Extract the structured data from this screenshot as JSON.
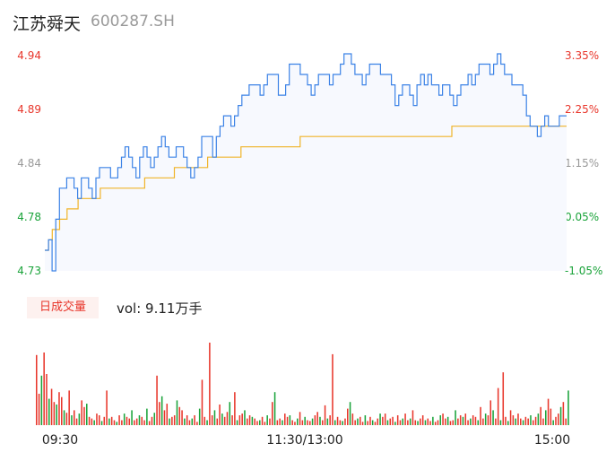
{
  "header": {
    "name": "江苏舜天",
    "code": "600287.SH"
  },
  "volume_panel": {
    "badge_label": "日成交量",
    "vol_text": "vol: 9.11万手"
  },
  "colors": {
    "price": "#3b82e6",
    "avg": "#f0b429",
    "up": "#e8362b",
    "down": "#1aa33a",
    "flat": "#999999",
    "fill": "#f7f9fe"
  },
  "chart_data": [
    {
      "type": "line",
      "title": "",
      "x_ticks": [
        "09:30",
        "11:30/13:00",
        "15:00"
      ],
      "y_left_ticks": [
        "4.94",
        "4.89",
        "4.84",
        "4.78",
        "4.73"
      ],
      "y_right_ticks": [
        "3.35%",
        "2.25%",
        "1.15%",
        "0.05%",
        "-1.05%"
      ],
      "ylim": [
        4.73,
        4.94
      ],
      "series": [
        {
          "values": [
            4.75,
            4.76,
            4.73,
            4.78,
            4.81,
            4.81,
            4.82,
            4.82,
            4.81,
            4.8,
            4.82,
            4.82,
            4.81,
            4.8,
            4.82,
            4.83,
            4.83,
            4.83,
            4.82,
            4.82,
            4.83,
            4.84,
            4.85,
            4.84,
            4.83,
            4.82,
            4.84,
            4.85,
            4.84,
            4.83,
            4.84,
            4.85,
            4.86,
            4.85,
            4.84,
            4.84,
            4.85,
            4.85,
            4.84,
            4.83,
            4.82,
            4.83,
            4.84,
            4.86,
            4.86,
            4.86,
            4.84,
            4.86,
            4.87,
            4.88,
            4.88,
            4.87,
            4.88,
            4.89,
            4.9,
            4.9,
            4.91,
            4.91,
            4.91,
            4.9,
            4.91,
            4.92,
            4.92,
            4.92,
            4.9,
            4.9,
            4.91,
            4.93,
            4.93,
            4.93,
            4.92,
            4.92,
            4.91,
            4.9,
            4.91,
            4.92,
            4.92,
            4.92,
            4.91,
            4.92,
            4.92,
            4.93,
            4.94,
            4.94,
            4.93,
            4.92,
            4.92,
            4.91,
            4.92,
            4.93,
            4.93,
            4.93,
            4.92,
            4.92,
            4.92,
            4.91,
            4.89,
            4.9,
            4.91,
            4.91,
            4.9,
            4.89,
            4.91,
            4.92,
            4.91,
            4.92,
            4.91,
            4.91,
            4.9,
            4.91,
            4.91,
            4.9,
            4.89,
            4.9,
            4.91,
            4.91,
            4.92,
            4.91,
            4.92,
            4.93,
            4.93,
            4.93,
            4.92,
            4.93,
            4.94,
            4.93,
            4.92,
            4.92,
            4.91,
            4.91,
            4.91,
            4.9,
            4.88,
            4.87,
            4.87,
            4.86,
            4.87,
            4.88,
            4.87,
            4.87,
            4.87,
            4.88,
            4.88,
            4.88
          ],
          "color": "#3b82e6"
        },
        {
          "values": [
            4.75,
            4.76,
            4.77,
            4.77,
            4.78,
            4.78,
            4.79,
            4.79,
            4.79,
            4.8,
            4.8,
            4.8,
            4.8,
            4.8,
            4.8,
            4.81,
            4.81,
            4.81,
            4.81,
            4.81,
            4.81,
            4.81,
            4.81,
            4.81,
            4.81,
            4.81,
            4.81,
            4.82,
            4.82,
            4.82,
            4.82,
            4.82,
            4.82,
            4.82,
            4.82,
            4.83,
            4.83,
            4.83,
            4.83,
            4.83,
            4.83,
            4.83,
            4.83,
            4.83,
            4.84,
            4.84,
            4.84,
            4.84,
            4.84,
            4.84,
            4.84,
            4.84,
            4.84,
            4.85,
            4.85,
            4.85,
            4.85,
            4.85,
            4.85,
            4.85,
            4.85,
            4.85,
            4.85,
            4.85,
            4.85,
            4.85,
            4.85,
            4.85,
            4.85,
            4.86,
            4.86,
            4.86,
            4.86,
            4.86,
            4.86,
            4.86,
            4.86,
            4.86,
            4.86,
            4.86,
            4.86,
            4.86,
            4.86,
            4.86,
            4.86,
            4.86,
            4.86,
            4.86,
            4.86,
            4.86,
            4.86,
            4.86,
            4.86,
            4.86,
            4.86,
            4.86,
            4.86,
            4.86,
            4.86,
            4.86,
            4.86,
            4.86,
            4.86,
            4.86,
            4.86,
            4.86,
            4.86,
            4.86,
            4.86,
            4.86,
            4.87,
            4.87,
            4.87,
            4.87,
            4.87,
            4.87,
            4.87,
            4.87,
            4.87,
            4.87,
            4.87,
            4.87,
            4.87,
            4.87,
            4.87,
            4.87,
            4.87,
            4.87,
            4.87,
            4.87,
            4.87,
            4.87,
            4.87,
            4.87,
            4.87,
            4.87,
            4.87,
            4.87,
            4.87,
            4.87,
            4.87,
            4.87
          ],
          "color": "#f0b429"
        }
      ]
    },
    {
      "type": "bar",
      "title": "",
      "ylim": [
        0,
        100
      ],
      "values": [
        85,
        38,
        60,
        88,
        62,
        32,
        44,
        28,
        25,
        40,
        34,
        18,
        15,
        42,
        12,
        18,
        8,
        14,
        30,
        22,
        26,
        10,
        8,
        6,
        14,
        12,
        5,
        10,
        42,
        8,
        10,
        6,
        4,
        12,
        6,
        14,
        10,
        8,
        18,
        6,
        8,
        12,
        10,
        6,
        20,
        5,
        10,
        15,
        60,
        28,
        35,
        18,
        26,
        8,
        10,
        12,
        30,
        22,
        18,
        8,
        12,
        6,
        8,
        12,
        4,
        20,
        55,
        10,
        6,
        100,
        12,
        18,
        8,
        25,
        14,
        10,
        16,
        28,
        12,
        40,
        6,
        12,
        14,
        18,
        8,
        12,
        10,
        8,
        5,
        6,
        10,
        4,
        12,
        8,
        28,
        40,
        6,
        8,
        6,
        14,
        10,
        12,
        6,
        4,
        8,
        16,
        6,
        10,
        6,
        5,
        8,
        12,
        16,
        10,
        6,
        24,
        8,
        12,
        86,
        6,
        10,
        6,
        5,
        8,
        20,
        28,
        14,
        6,
        8,
        10,
        4,
        12,
        5,
        10,
        6,
        4,
        8,
        14,
        10,
        14,
        6,
        8,
        10,
        4,
        12,
        6,
        8,
        14,
        6,
        8,
        18,
        6,
        5,
        8,
        12,
        6,
        8,
        5,
        10,
        4,
        6,
        12,
        14,
        8,
        10,
        5,
        6,
        18,
        8,
        12,
        10,
        14,
        6,
        8,
        12,
        10,
        6,
        22,
        8,
        14,
        12,
        30,
        18,
        8,
        45,
        6,
        64,
        10,
        5,
        18,
        12,
        8,
        14,
        8,
        6,
        10,
        8,
        12,
        6,
        10,
        14,
        22,
        8,
        18,
        32,
        20,
        6,
        10,
        14,
        22,
        28,
        8,
        42
      ],
      "colors_pattern": [
        "#e8362b",
        "#1aa33a",
        "#e8362b",
        "#e8362b",
        "#1aa33a",
        "#e8362b"
      ]
    }
  ]
}
